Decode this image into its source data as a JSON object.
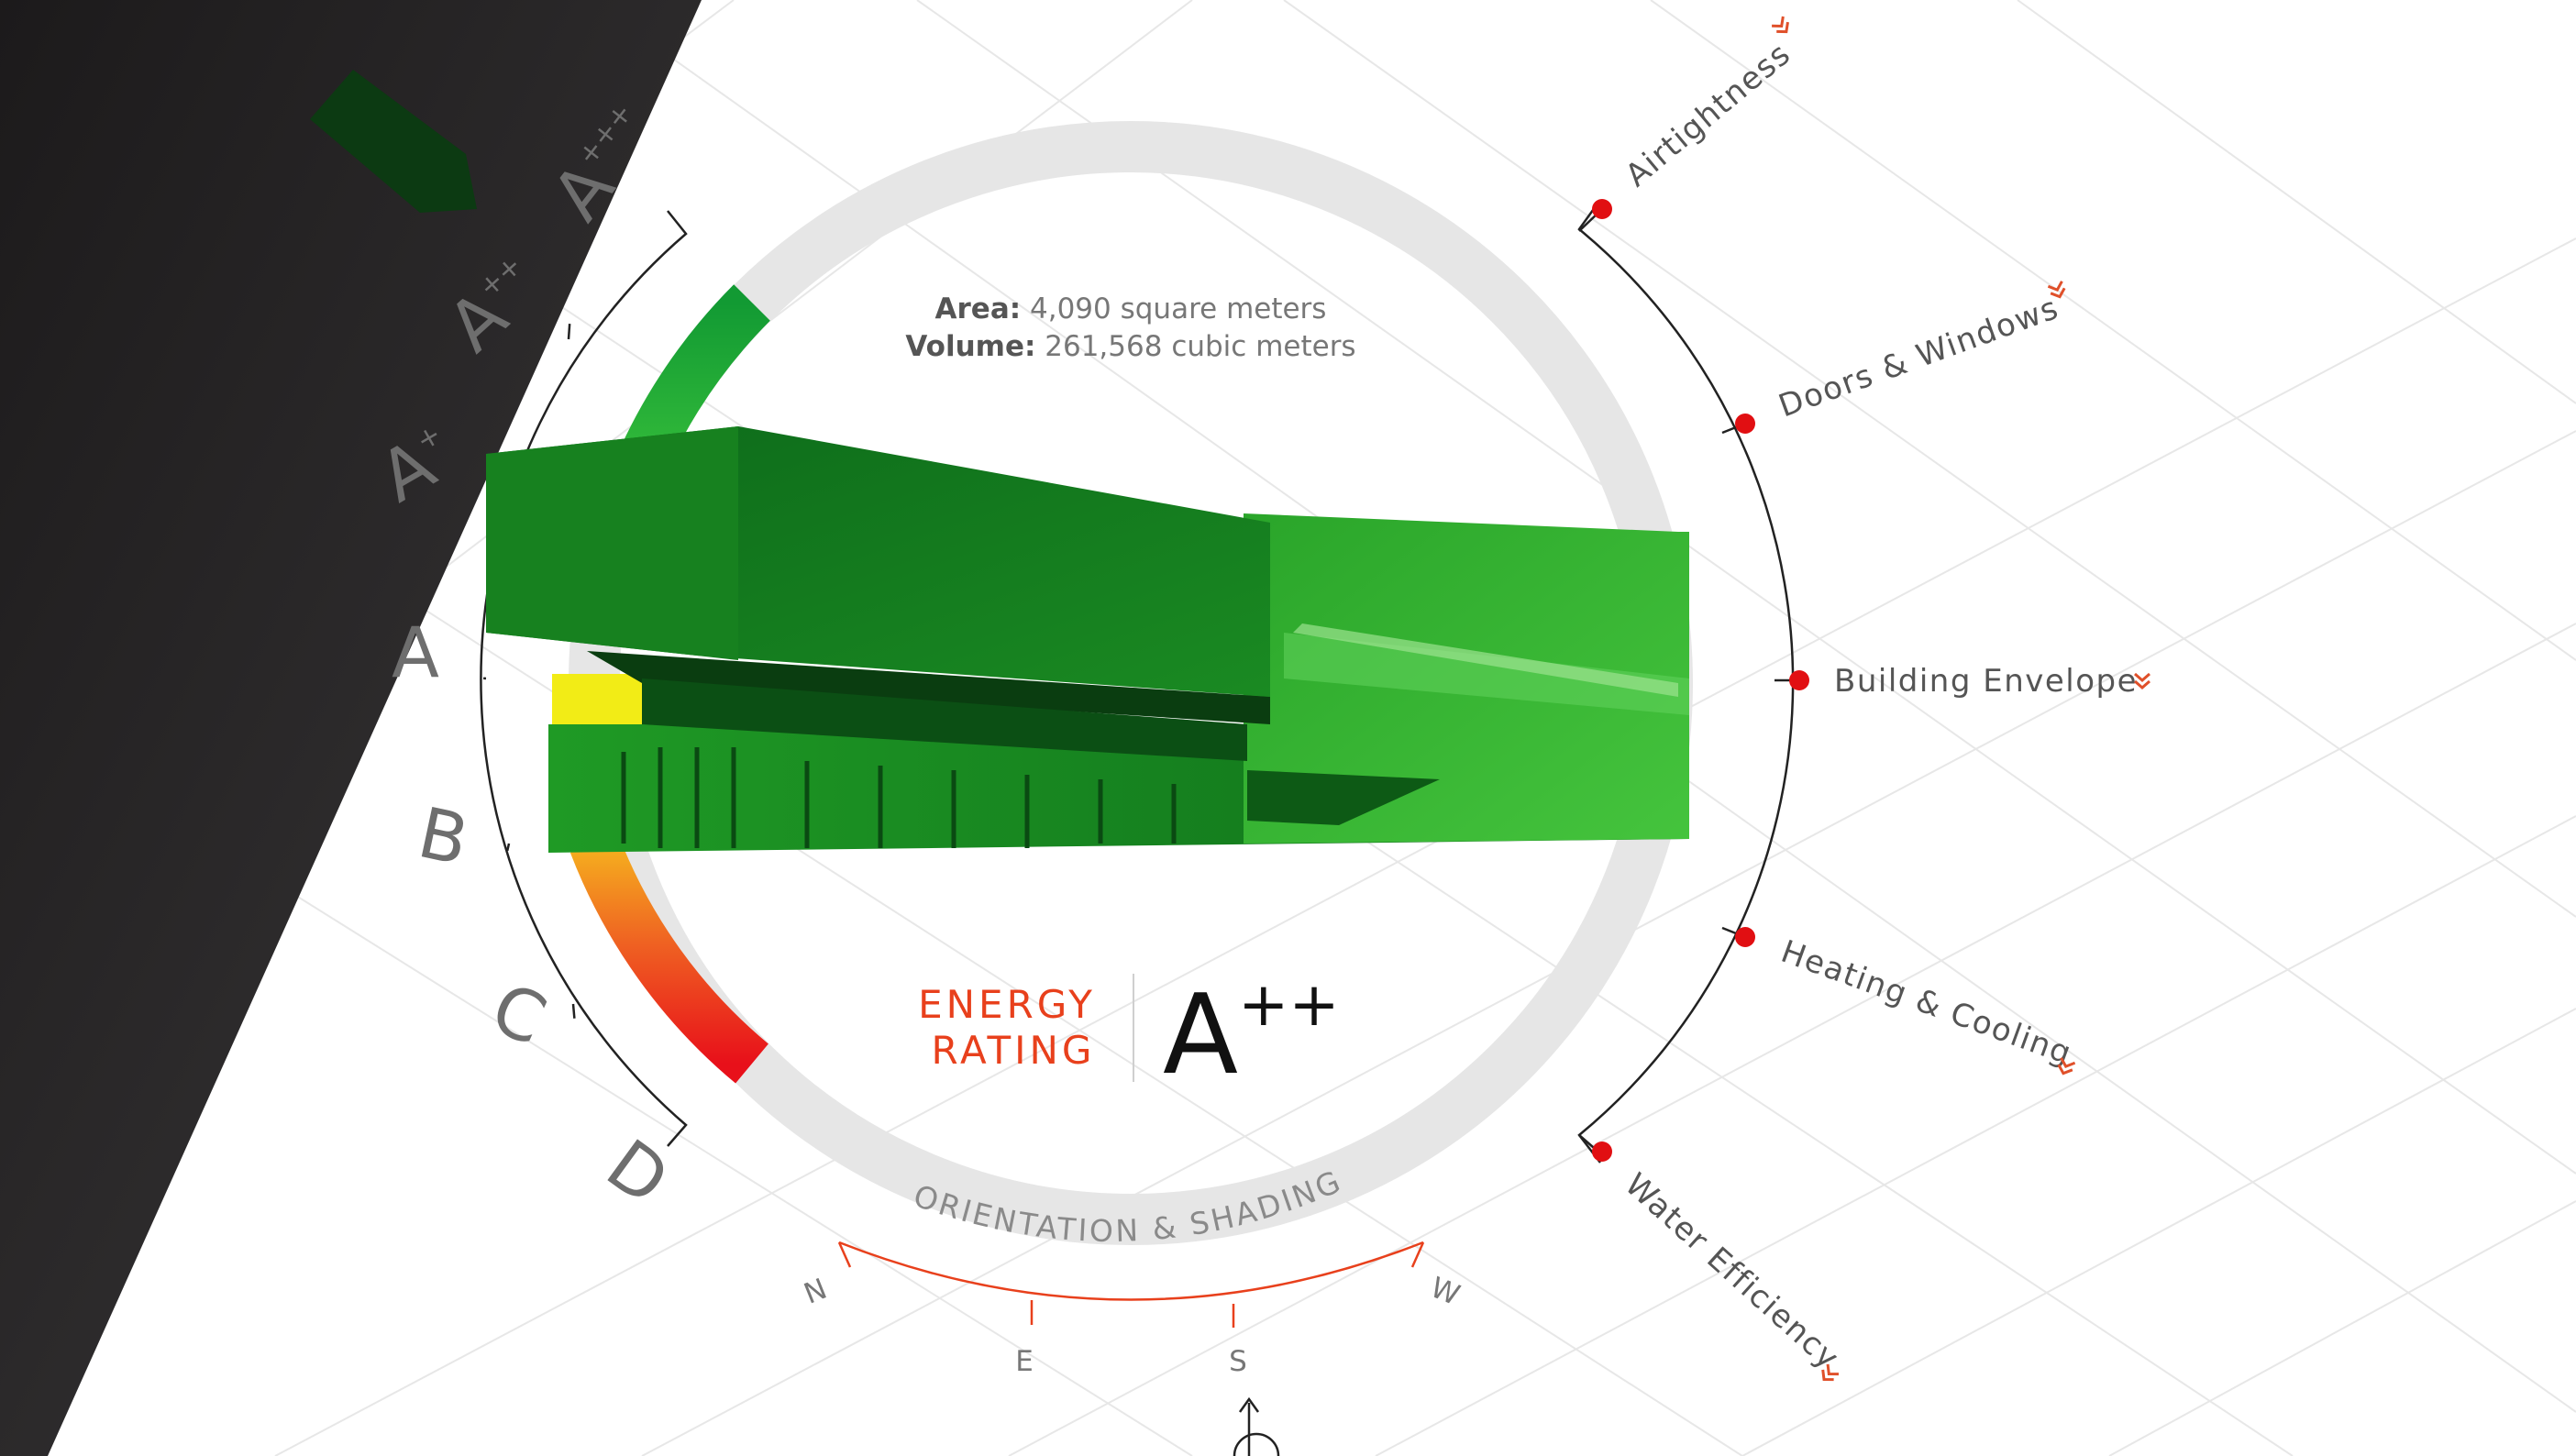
{
  "info": {
    "area_label": "Area:",
    "area_value": "4,090 square meters",
    "volume_label": "Volume:",
    "volume_value": "261,568 cubic meters"
  },
  "rating": {
    "title_line1": "ENERGY",
    "title_line2": "RATING",
    "grade_base": "A",
    "grade_sup": "++"
  },
  "scale": {
    "grades": [
      {
        "base": "A",
        "sup": "+++"
      },
      {
        "base": "A",
        "sup": "++"
      },
      {
        "base": "A",
        "sup": "+"
      },
      {
        "base": "A",
        "sup": ""
      },
      {
        "base": "B",
        "sup": ""
      },
      {
        "base": "C",
        "sup": ""
      },
      {
        "base": "D",
        "sup": ""
      }
    ]
  },
  "orientation": {
    "label": "ORIENTATION & SHADING",
    "directions": [
      "N",
      "E",
      "S",
      "W"
    ]
  },
  "metrics": [
    {
      "label": "Airtightness"
    },
    {
      "label": "Doors & Windows"
    },
    {
      "label": "Building Envelope"
    },
    {
      "label": "Heating & Cooling"
    },
    {
      "label": "Water Efficiency"
    }
  ],
  "colors": {
    "accent": "#e8401c",
    "metric_dot": "#e10f12",
    "ring": "#e6e6e6",
    "gauge_green": "#1fa533",
    "gauge_red": "#e8101a",
    "building_green": "#1e9a22",
    "dark_panel": "#2a2829"
  }
}
